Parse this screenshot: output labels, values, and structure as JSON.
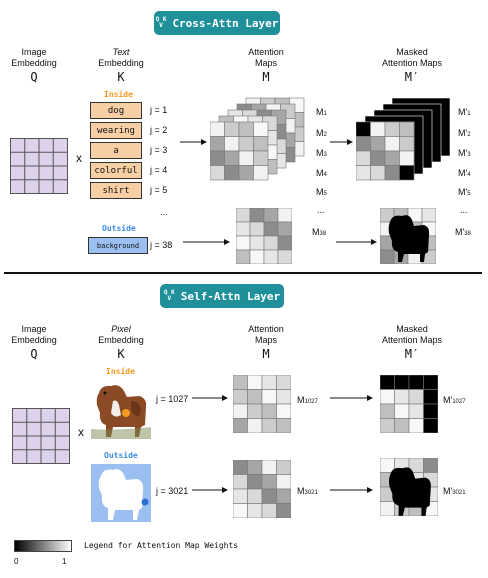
{
  "cross_section": {
    "badge": "Cross-Attn Layer",
    "qk_top": "Q K",
    "qk_bottom": "V",
    "headers": {
      "image_embedding": [
        "Image",
        "Embedding"
      ],
      "text_embedding": [
        "Text",
        "Embedding"
      ],
      "attention_maps": [
        "Attention",
        "Maps"
      ],
      "masked_maps": [
        "Masked",
        "Attention Maps"
      ]
    },
    "symbols": {
      "q": "Q",
      "k": "K",
      "m": "M",
      "mprime": "M′"
    },
    "inside_label": "Inside",
    "outside_label": "Outside",
    "times": "x",
    "ellipsis": "...",
    "tokens": [
      {
        "word": "dog",
        "j": "j = 1",
        "m_sub": "1",
        "mp_sub": "1"
      },
      {
        "word": "wearing",
        "j": "j = 2",
        "m_sub": "2",
        "mp_sub": "2"
      },
      {
        "word": "a",
        "j": "j = 3",
        "m_sub": "3",
        "mp_sub": "3"
      },
      {
        "word": "colorful",
        "j": "j = 4",
        "m_sub": "4",
        "mp_sub": "4"
      },
      {
        "word": "shirt",
        "j": "j = 5",
        "m_sub": "5",
        "mp_sub": "5"
      }
    ],
    "outside_token": {
      "word": "background",
      "j": "j = 38",
      "m_sub": "38",
      "mp_sub": "38"
    }
  },
  "self_section": {
    "badge": "Self-Attn Layer",
    "qk_top": "Q K",
    "qk_bottom": "V",
    "headers": {
      "image_embedding": [
        "Image",
        "Embedding"
      ],
      "pixel_embedding": [
        "Pixel",
        "Embedding"
      ],
      "attention_maps": [
        "Attention",
        "Maps"
      ],
      "masked_maps": [
        "Masked",
        "Attention Maps"
      ]
    },
    "symbols": {
      "q": "Q",
      "k": "K",
      "m": "M",
      "mprime": "M′"
    },
    "inside_label": "Inside",
    "outside_label": "Outside",
    "times": "x",
    "inside_j": "j = 1027",
    "outside_j": "j = 3021",
    "inside_m_sub": "1027",
    "outside_m_sub": "3021"
  },
  "legend": {
    "label": "Legend for Attention Map Weights",
    "min": "0",
    "max": "1"
  },
  "colors": {
    "badge": "#1f8f9a",
    "inside": "#f59a23",
    "outside": "#3c8be0",
    "token_fill": "#f6cfa4",
    "outside_token_fill": "#9cbff2",
    "query_grid": "#ddd2ea"
  }
}
